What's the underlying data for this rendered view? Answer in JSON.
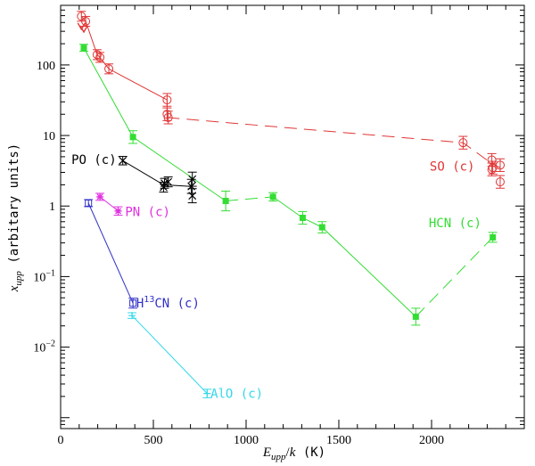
{
  "chart_data": {
    "type": "scatter",
    "x_axis": {
      "range": [
        0,
        2500
      ],
      "ticks": [
        0,
        500,
        1000,
        1500,
        2000
      ],
      "label_var": "E",
      "label_sub": "upp",
      "label_slash": "/",
      "label_k": "k",
      "label_unit": " (K)"
    },
    "y_axis": {
      "scale": "log",
      "range": [
        0.0007,
        700
      ],
      "ticks": [
        {
          "value": 100,
          "label": "100"
        },
        {
          "value": 10,
          "label": "10"
        },
        {
          "value": 1,
          "label": "1"
        },
        {
          "value": 0.1,
          "base": "10",
          "exp": "−1"
        },
        {
          "value": 0.01,
          "base": "10",
          "exp": "−2"
        }
      ],
      "label_var": "x",
      "label_sub": "upp",
      "label_rest": " (arbitary units)"
    },
    "series": [
      {
        "name": "SO (c)",
        "color": "#e03535",
        "marker": "circle",
        "points": [
          {
            "x": 112,
            "y": 490,
            "err": 0.07
          },
          {
            "x": 135,
            "y": 415,
            "err": 0.07
          },
          {
            "x": 197,
            "y": 140,
            "err": 0.07
          },
          {
            "x": 212,
            "y": 128,
            "err": 0.07
          },
          {
            "x": 260,
            "y": 88,
            "err": 0.07
          },
          {
            "x": 574,
            "y": 32,
            "err": 0.09
          },
          {
            "x": 574,
            "y": 20,
            "err": 0.09
          },
          {
            "x": 580,
            "y": 18,
            "err": 0.09
          },
          {
            "x": 2170,
            "y": 7.9,
            "err": 0.09
          },
          {
            "x": 2325,
            "y": 4.5,
            "err": 0.09
          },
          {
            "x": 2325,
            "y": 3.3,
            "err": 0.09
          },
          {
            "x": 2330,
            "y": 3.5,
            "err": 0.09
          },
          {
            "x": 2370,
            "y": 3.8,
            "err": 0.09
          },
          {
            "x": 2370,
            "y": 2.2,
            "err": 0.09
          }
        ],
        "limits": [
          {
            "x": 112,
            "y": 350
          },
          {
            "x": 125,
            "y": 320
          }
        ],
        "solid_line": [
          [
            112,
            490
          ],
          [
            135,
            415
          ],
          [
            197,
            140
          ],
          [
            212,
            128
          ],
          [
            260,
            88
          ],
          [
            574,
            32
          ],
          [
            574,
            18
          ]
        ],
        "dashed_line": [
          [
            574,
            18
          ],
          [
            2170,
            7.9
          ],
          [
            2325,
            4
          ],
          [
            2370,
            3.5
          ]
        ]
      },
      {
        "name": "HCN (c)",
        "color": "#33dd33",
        "marker": "square",
        "points": [
          {
            "x": 125,
            "y": 175,
            "err": 0.05
          },
          {
            "x": 390,
            "y": 9.5,
            "err": 0.09
          },
          {
            "x": 890,
            "y": 1.18,
            "err": 0.14
          },
          {
            "x": 1145,
            "y": 1.35,
            "err": 0.06
          },
          {
            "x": 1305,
            "y": 0.68,
            "err": 0.09
          },
          {
            "x": 1410,
            "y": 0.5,
            "err": 0.08
          },
          {
            "x": 1915,
            "y": 0.027,
            "err": 0.12
          },
          {
            "x": 2330,
            "y": 0.36,
            "err": 0.07
          }
        ],
        "solid_line": [
          [
            125,
            175
          ],
          [
            390,
            9.5
          ],
          [
            890,
            1.18
          ]
        ],
        "dashed_line": [
          [
            890,
            1.18
          ],
          [
            1145,
            1.35
          ]
        ],
        "solid_line_2": [
          [
            1145,
            1.35
          ],
          [
            1305,
            0.68
          ],
          [
            1410,
            0.5
          ],
          [
            1915,
            0.027
          ]
        ],
        "dashed_line_2": [
          [
            1915,
            0.027
          ],
          [
            2330,
            0.36
          ]
        ]
      },
      {
        "name": "PO (c)",
        "color": "#000000",
        "marker": "cross",
        "points": [
          {
            "x": 335,
            "y": 4.4,
            "err": 0.06
          },
          {
            "x": 555,
            "y": 1.85,
            "err": 0.07
          },
          {
            "x": 560,
            "y": 2.1,
            "err": 0.07
          },
          {
            "x": 580,
            "y": 2.2,
            "err": 0.07
          },
          {
            "x": 705,
            "y": 1.9,
            "err": 0.1
          },
          {
            "x": 710,
            "y": 2.4,
            "err": 0.1
          },
          {
            "x": 710,
            "y": 1.4,
            "err": 0.1
          }
        ],
        "solid_line": [
          [
            335,
            4.4
          ],
          [
            555,
            2.0
          ],
          [
            705,
            1.9
          ]
        ]
      },
      {
        "name": "PN (c)",
        "color": "#e030e0",
        "marker": "star",
        "points": [
          {
            "x": 212,
            "y": 1.35,
            "err": 0.05
          },
          {
            "x": 310,
            "y": 0.85,
            "err": 0.06
          }
        ],
        "solid_line": [
          [
            212,
            1.35
          ],
          [
            310,
            0.85
          ]
        ]
      },
      {
        "name": "H13CN (c)",
        "color": "#3030c8",
        "marker": "open-square",
        "points": [
          {
            "x": 150,
            "y": 1.1,
            "err": 0.05
          },
          {
            "x": 390,
            "y": 0.042,
            "err": 0.07
          }
        ],
        "solid_line": [
          [
            150,
            1.1
          ],
          [
            390,
            0.042
          ]
        ]
      },
      {
        "name": "AlO (c)",
        "color": "#33d8e8",
        "marker": "plus",
        "points": [
          {
            "x": 385,
            "y": 0.028,
            "err": 0.04
          },
          {
            "x": 790,
            "y": 0.0022,
            "err": 0.06
          }
        ],
        "solid_line": [
          [
            385,
            0.028
          ],
          [
            790,
            0.0022
          ]
        ]
      }
    ],
    "annotations": [
      {
        "series": "SO (c)",
        "text": "SO (c)",
        "x": 1990,
        "y": 3.7,
        "color": "#e03535"
      },
      {
        "series": "HCN (c)",
        "text": "HCN (c)",
        "x": 1985,
        "y": 0.58,
        "color": "#33dd33"
      },
      {
        "series": "PO (c)",
        "text": "PO (c)",
        "x": 58,
        "y": 4.6,
        "color": "#000000"
      },
      {
        "series": "PN (c)",
        "text": "PN (c)",
        "x": 348,
        "y": 0.83,
        "color": "#e030e0"
      },
      {
        "series": "H13CN (c)",
        "text_base": "H",
        "text_sup": "13",
        "text_rest": "CN (c)",
        "x": 408,
        "y": 0.042,
        "color": "#3030c8"
      },
      {
        "series": "AlO (c)",
        "text": "AlO (c)",
        "x": 808,
        "y": 0.0022,
        "color": "#33d8e8"
      }
    ]
  }
}
